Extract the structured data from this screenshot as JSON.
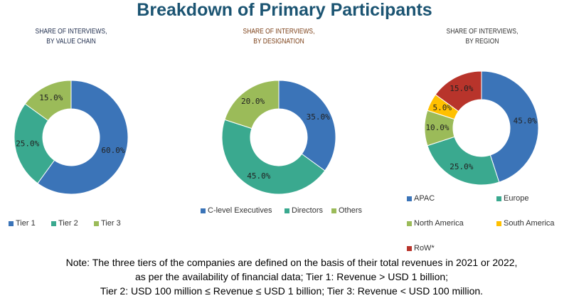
{
  "title": "Breakdown of Primary Participants",
  "chart_data": [
    {
      "type": "pie",
      "donut": true,
      "title": [
        "SHARE OF INTERVIEWS,",
        "BY VALUE CHAIN"
      ],
      "title_color": "#1f2d4d",
      "categories": [
        "Tier 1",
        "Tier 2",
        "Tier 3"
      ],
      "values": [
        60.0,
        25.0,
        15.0
      ],
      "colors": [
        "#3b74b8",
        "#3aa98f",
        "#9bbb59"
      ],
      "legend": "bottom"
    },
    {
      "type": "pie",
      "donut": true,
      "title": [
        "SHARE OF INTERVIEWS,",
        "BY DESIGNATION"
      ],
      "title_color": "#7b3f16",
      "categories": [
        "C-level Executives",
        "Directors",
        "Others"
      ],
      "values": [
        35.0,
        45.0,
        20.0
      ],
      "colors": [
        "#3b74b8",
        "#3aa98f",
        "#9bbb59"
      ],
      "legend": "bottom"
    },
    {
      "type": "pie",
      "donut": true,
      "title": [
        "SHARE OF INTERVIEWS,",
        "BY REGION"
      ],
      "title_color": "#333333",
      "categories": [
        "APAC",
        "Europe",
        "North America",
        "South America",
        "RoW*"
      ],
      "values": [
        45.0,
        25.0,
        10.0,
        5.0,
        15.0
      ],
      "colors": [
        "#3b74b8",
        "#3aa98f",
        "#9bbb59",
        "#ffc000",
        "#b8342b"
      ],
      "legend": "bottom"
    }
  ],
  "note": [
    "Note: The three tiers of the companies are defined on the basis of their total revenues in 2021 or 2022,",
    "as per the availability of financial data; Tier 1: Revenue > USD 1 billion;",
    "Tier 2: USD 100 million ≤ Revenue ≤ USD 1 billion; Tier 3: Revenue < USD 100 million."
  ]
}
